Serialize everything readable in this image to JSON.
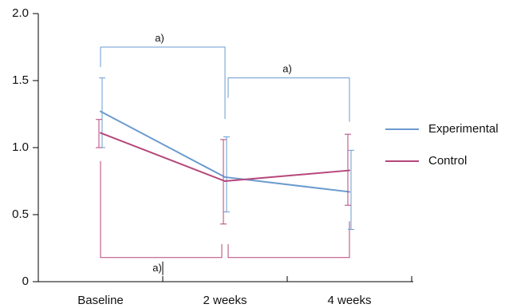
{
  "chart_data": {
    "type": "line",
    "categories": [
      "Baseline",
      "2 weeks",
      "4 weeks"
    ],
    "ylim": [
      0,
      2.0
    ],
    "yticks": [
      "0",
      "0.5",
      "1.0",
      "1.5",
      "2.0"
    ],
    "grid": false,
    "legend_position": "right",
    "series": [
      {
        "name": "Experimental",
        "color": "#6b9bcf",
        "values": [
          1.27,
          0.78,
          0.67
        ],
        "err_upper": [
          1.52,
          1.08,
          0.98
        ],
        "err_lower": [
          1.0,
          0.52,
          0.39
        ]
      },
      {
        "name": "Control",
        "color": "#b5467a",
        "values": [
          1.11,
          0.75,
          0.83
        ],
        "err_upper": [
          1.21,
          1.06,
          1.1
        ],
        "err_lower": [
          1.0,
          0.43,
          0.57
        ]
      }
    ],
    "brackets": [
      {
        "label": "a)",
        "from": 0,
        "to": 1,
        "side": "top",
        "level": 1.75,
        "color": "#6b9bcf"
      },
      {
        "label": "a)",
        "from": 1,
        "to": 2,
        "side": "top",
        "level": 1.52,
        "color": "#6b9bcf"
      },
      {
        "label": "a)",
        "from": 0,
        "to": 2,
        "side": "bottom",
        "level": 0.18,
        "color": "#b5467a"
      }
    ]
  }
}
